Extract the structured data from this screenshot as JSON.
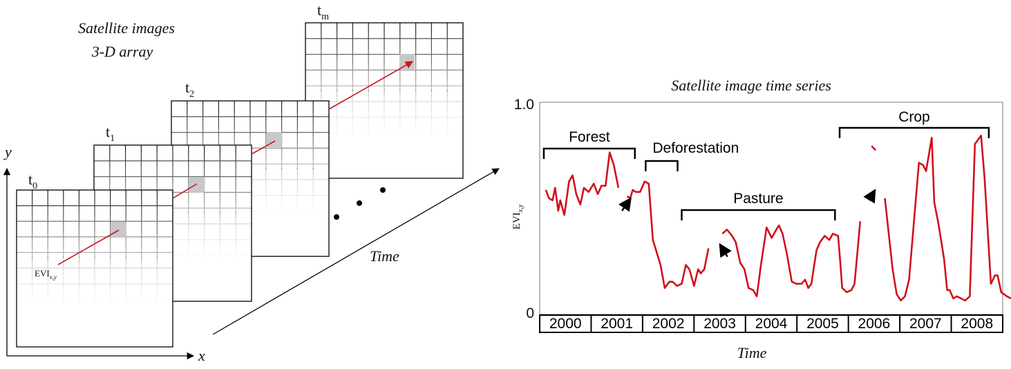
{
  "left_panel": {
    "title_line1": "Satellite images",
    "title_line2": "3-D array",
    "frames": [
      {
        "base": "t",
        "sub": "0"
      },
      {
        "base": "t",
        "sub": "1"
      },
      {
        "base": "t",
        "sub": "2"
      },
      {
        "base": "t",
        "sub": "m"
      }
    ],
    "pixel_label_base": "EVI",
    "pixel_label_sub": "x,y",
    "axis_x": "x",
    "axis_y": "y",
    "time_label": "Time"
  },
  "chart_data": {
    "type": "line",
    "title": "Satellite image time series",
    "xlabel": "Time",
    "ylabel_base": "EVI",
    "ylabel_sub": "x,y",
    "ylim": [
      0,
      1.0
    ],
    "y_ticks": [
      "1.0",
      "0"
    ],
    "xlim": [
      2000,
      2009
    ],
    "years": [
      "2000",
      "2001",
      "2002",
      "2003",
      "2004",
      "2005",
      "2006",
      "2007",
      "2008"
    ],
    "color": "#d0101c",
    "segments": [
      {
        "label": "Forest",
        "start": 2000.0,
        "end": 2001.77
      },
      {
        "label": "Deforestation",
        "start": 2001.98,
        "end": 2002.6
      },
      {
        "label": "Pasture",
        "start": 2002.68,
        "end": 2005.66
      },
      {
        "label": "Crop",
        "start": 2005.75,
        "end": 2008.65
      }
    ],
    "series": [
      {
        "points": [
          [
            2000.12,
            0.59
          ],
          [
            2000.18,
            0.55
          ],
          [
            2000.25,
            0.54
          ],
          [
            2000.3,
            0.6
          ],
          [
            2000.36,
            0.49
          ],
          [
            2000.4,
            0.54
          ],
          [
            2000.48,
            0.47
          ],
          [
            2000.57,
            0.63
          ],
          [
            2000.64,
            0.66
          ],
          [
            2000.71,
            0.57
          ],
          [
            2000.79,
            0.52
          ],
          [
            2000.86,
            0.6
          ],
          [
            2000.95,
            0.58
          ],
          [
            2001.05,
            0.62
          ],
          [
            2001.13,
            0.57
          ],
          [
            2001.2,
            0.61
          ],
          [
            2001.28,
            0.61
          ],
          [
            2001.36,
            0.77
          ],
          [
            2001.44,
            0.71
          ],
          [
            2001.53,
            0.6
          ]
        ]
      },
      {
        "points": [
          [
            2001.7,
            0.56
          ],
          [
            2001.76,
            0.55
          ],
          [
            2001.81,
            0.59
          ],
          [
            2001.87,
            0.58
          ],
          [
            2001.95,
            0.58
          ],
          [
            2002.04,
            0.63
          ],
          [
            2002.12,
            0.62
          ],
          [
            2002.2,
            0.35
          ],
          [
            2002.35,
            0.23
          ],
          [
            2002.43,
            0.12
          ],
          [
            2002.52,
            0.15
          ],
          [
            2002.58,
            0.15
          ],
          [
            2002.67,
            0.13
          ],
          [
            2002.76,
            0.14
          ],
          [
            2002.84,
            0.23
          ],
          [
            2002.91,
            0.21
          ],
          [
            2003.0,
            0.13
          ],
          [
            2003.08,
            0.21
          ],
          [
            2003.13,
            0.19
          ],
          [
            2003.2,
            0.21
          ],
          [
            2003.28,
            0.31
          ]
        ]
      },
      {
        "points": [
          [
            2003.55,
            0.38
          ],
          [
            2003.64,
            0.4
          ],
          [
            2003.74,
            0.37
          ],
          [
            2003.81,
            0.34
          ],
          [
            2003.9,
            0.24
          ],
          [
            2003.98,
            0.21
          ],
          [
            2004.06,
            0.12
          ],
          [
            2004.15,
            0.11
          ],
          [
            2004.22,
            0.08
          ],
          [
            2004.3,
            0.23
          ],
          [
            2004.41,
            0.41
          ],
          [
            2004.51,
            0.36
          ],
          [
            2004.6,
            0.4
          ],
          [
            2004.65,
            0.42
          ],
          [
            2004.72,
            0.38
          ],
          [
            2004.8,
            0.29
          ],
          [
            2004.9,
            0.15
          ],
          [
            2004.99,
            0.14
          ],
          [
            2005.09,
            0.14
          ],
          [
            2005.16,
            0.16
          ],
          [
            2005.22,
            0.12
          ],
          [
            2005.28,
            0.14
          ],
          [
            2005.38,
            0.3
          ],
          [
            2005.45,
            0.34
          ],
          [
            2005.54,
            0.37
          ],
          [
            2005.63,
            0.35
          ],
          [
            2005.7,
            0.38
          ],
          [
            2005.8,
            0.37
          ],
          [
            2005.84,
            0.25
          ],
          [
            2005.88,
            0.12
          ],
          [
            2005.97,
            0.1
          ],
          [
            2006.06,
            0.11
          ],
          [
            2006.12,
            0.14
          ],
          [
            2006.23,
            0.44
          ]
        ]
      },
      {
        "points": [
          [
            2006.45,
            0.8
          ],
          [
            2006.53,
            0.78
          ]
        ]
      },
      {
        "points": [
          [
            2006.71,
            0.55
          ],
          [
            2006.86,
            0.21
          ],
          [
            2006.94,
            0.09
          ],
          [
            2007.02,
            0.06
          ],
          [
            2007.1,
            0.08
          ],
          [
            2007.18,
            0.16
          ],
          [
            2007.37,
            0.72
          ],
          [
            2007.45,
            0.71
          ],
          [
            2007.51,
            0.68
          ],
          [
            2007.62,
            0.84
          ],
          [
            2007.67,
            0.53
          ],
          [
            2007.75,
            0.43
          ],
          [
            2007.86,
            0.26
          ],
          [
            2007.92,
            0.11
          ],
          [
            2007.97,
            0.11
          ],
          [
            2008.04,
            0.07
          ],
          [
            2008.11,
            0.08
          ],
          [
            2008.19,
            0.07
          ],
          [
            2008.27,
            0.06
          ],
          [
            2008.36,
            0.08
          ],
          [
            2008.46,
            0.81
          ],
          [
            2008.58,
            0.85
          ],
          [
            2008.65,
            0.64
          ],
          [
            2008.77,
            0.14
          ],
          [
            2008.85,
            0.18
          ],
          [
            2008.9,
            0.18
          ],
          [
            2008.97,
            0.1
          ],
          [
            2009.08,
            0.08
          ],
          [
            2009.16,
            0.07
          ]
        ]
      }
    ],
    "arrows": [
      {
        "from": [
          2001.6,
          0.49
        ],
        "to": [
          2001.77,
          0.55
        ]
      },
      {
        "from": [
          2003.65,
          0.27
        ],
        "to": [
          2003.5,
          0.33
        ]
      },
      {
        "from": [
          2006.4,
          0.54
        ],
        "to": [
          2006.52,
          0.59
        ]
      }
    ]
  }
}
